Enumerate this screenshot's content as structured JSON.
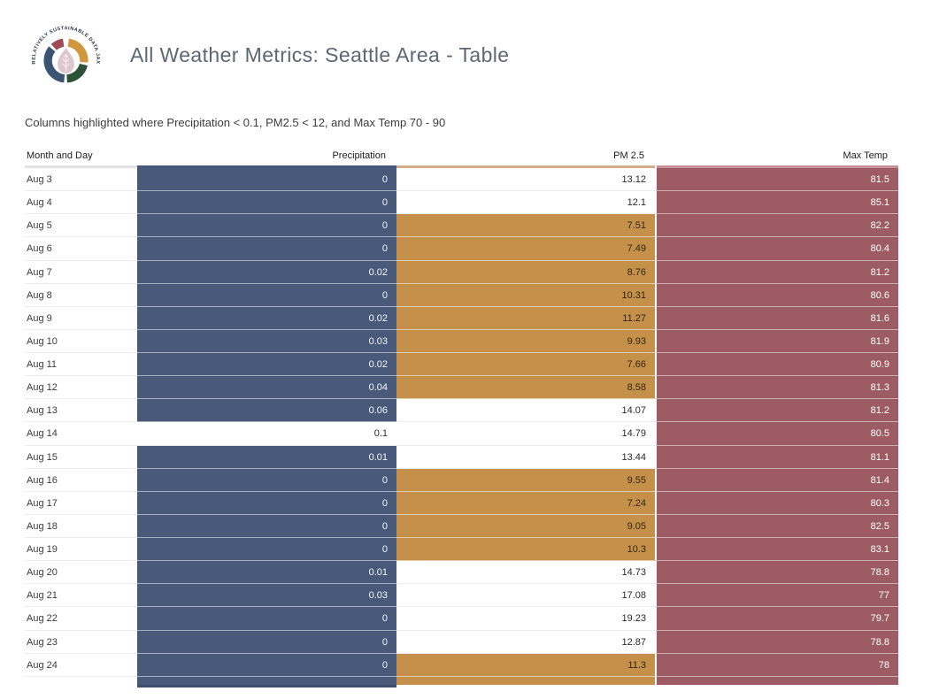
{
  "logo": {
    "ring_text": "RELATIVELY SUSTAINABLE DATA JAX",
    "colors": {
      "maroon": "#9f4d55",
      "gold": "#d1973e",
      "green": "#2d5138",
      "blue": "#3c5473",
      "droplet": "#dcc7cf",
      "text": "#24324a"
    }
  },
  "header": {
    "title": "All Weather Metrics: Seattle Area - Table"
  },
  "subtitle": "Columns highlighted where Precipitation < 0.1, PM2.5 < 12, and Max Temp 70 - 90",
  "chart_data": {
    "type": "table",
    "title": "All Weather Metrics: Seattle Area - Table",
    "columns": [
      "Month and Day",
      "Precipitation",
      "PM 2.5",
      "Max Temp"
    ],
    "highlight": {
      "precipitation_lt": 0.1,
      "pm25_lt": 12,
      "max_temp_range": [
        70,
        90
      ]
    },
    "colors": {
      "precipitation": "#48597a",
      "pm25": "#c4904a",
      "max_temp": "#9d5c63"
    },
    "rows": [
      [
        "Aug 3",
        0,
        13.12,
        81.5
      ],
      [
        "Aug 4",
        0,
        12.1,
        85.1
      ],
      [
        "Aug 5",
        0,
        7.51,
        82.2
      ],
      [
        "Aug 6",
        0,
        7.49,
        80.4
      ],
      [
        "Aug 7",
        0.02,
        8.76,
        81.2
      ],
      [
        "Aug 8",
        0,
        10.31,
        80.6
      ],
      [
        "Aug 9",
        0.02,
        11.27,
        81.6
      ],
      [
        "Aug 10",
        0.03,
        9.93,
        81.9
      ],
      [
        "Aug 11",
        0.02,
        7.66,
        80.9
      ],
      [
        "Aug 12",
        0.04,
        8.58,
        81.3
      ],
      [
        "Aug 13",
        0.06,
        14.07,
        81.2
      ],
      [
        "Aug 14",
        0.1,
        14.79,
        80.5
      ],
      [
        "Aug 15",
        0.01,
        13.44,
        81.1
      ],
      [
        "Aug 16",
        0,
        9.55,
        81.4
      ],
      [
        "Aug 17",
        0,
        7.24,
        80.3
      ],
      [
        "Aug 18",
        0,
        9.05,
        82.5
      ],
      [
        "Aug 19",
        0,
        10.3,
        83.1
      ],
      [
        "Aug 20",
        0.01,
        14.73,
        78.8
      ],
      [
        "Aug 21",
        0.03,
        17.08,
        77
      ],
      [
        "Aug 22",
        0,
        19.23,
        79.7
      ],
      [
        "Aug 23",
        0,
        12.87,
        78.8
      ],
      [
        "Aug 24",
        0,
        11.3,
        78
      ]
    ],
    "partial_row_visible": true
  }
}
